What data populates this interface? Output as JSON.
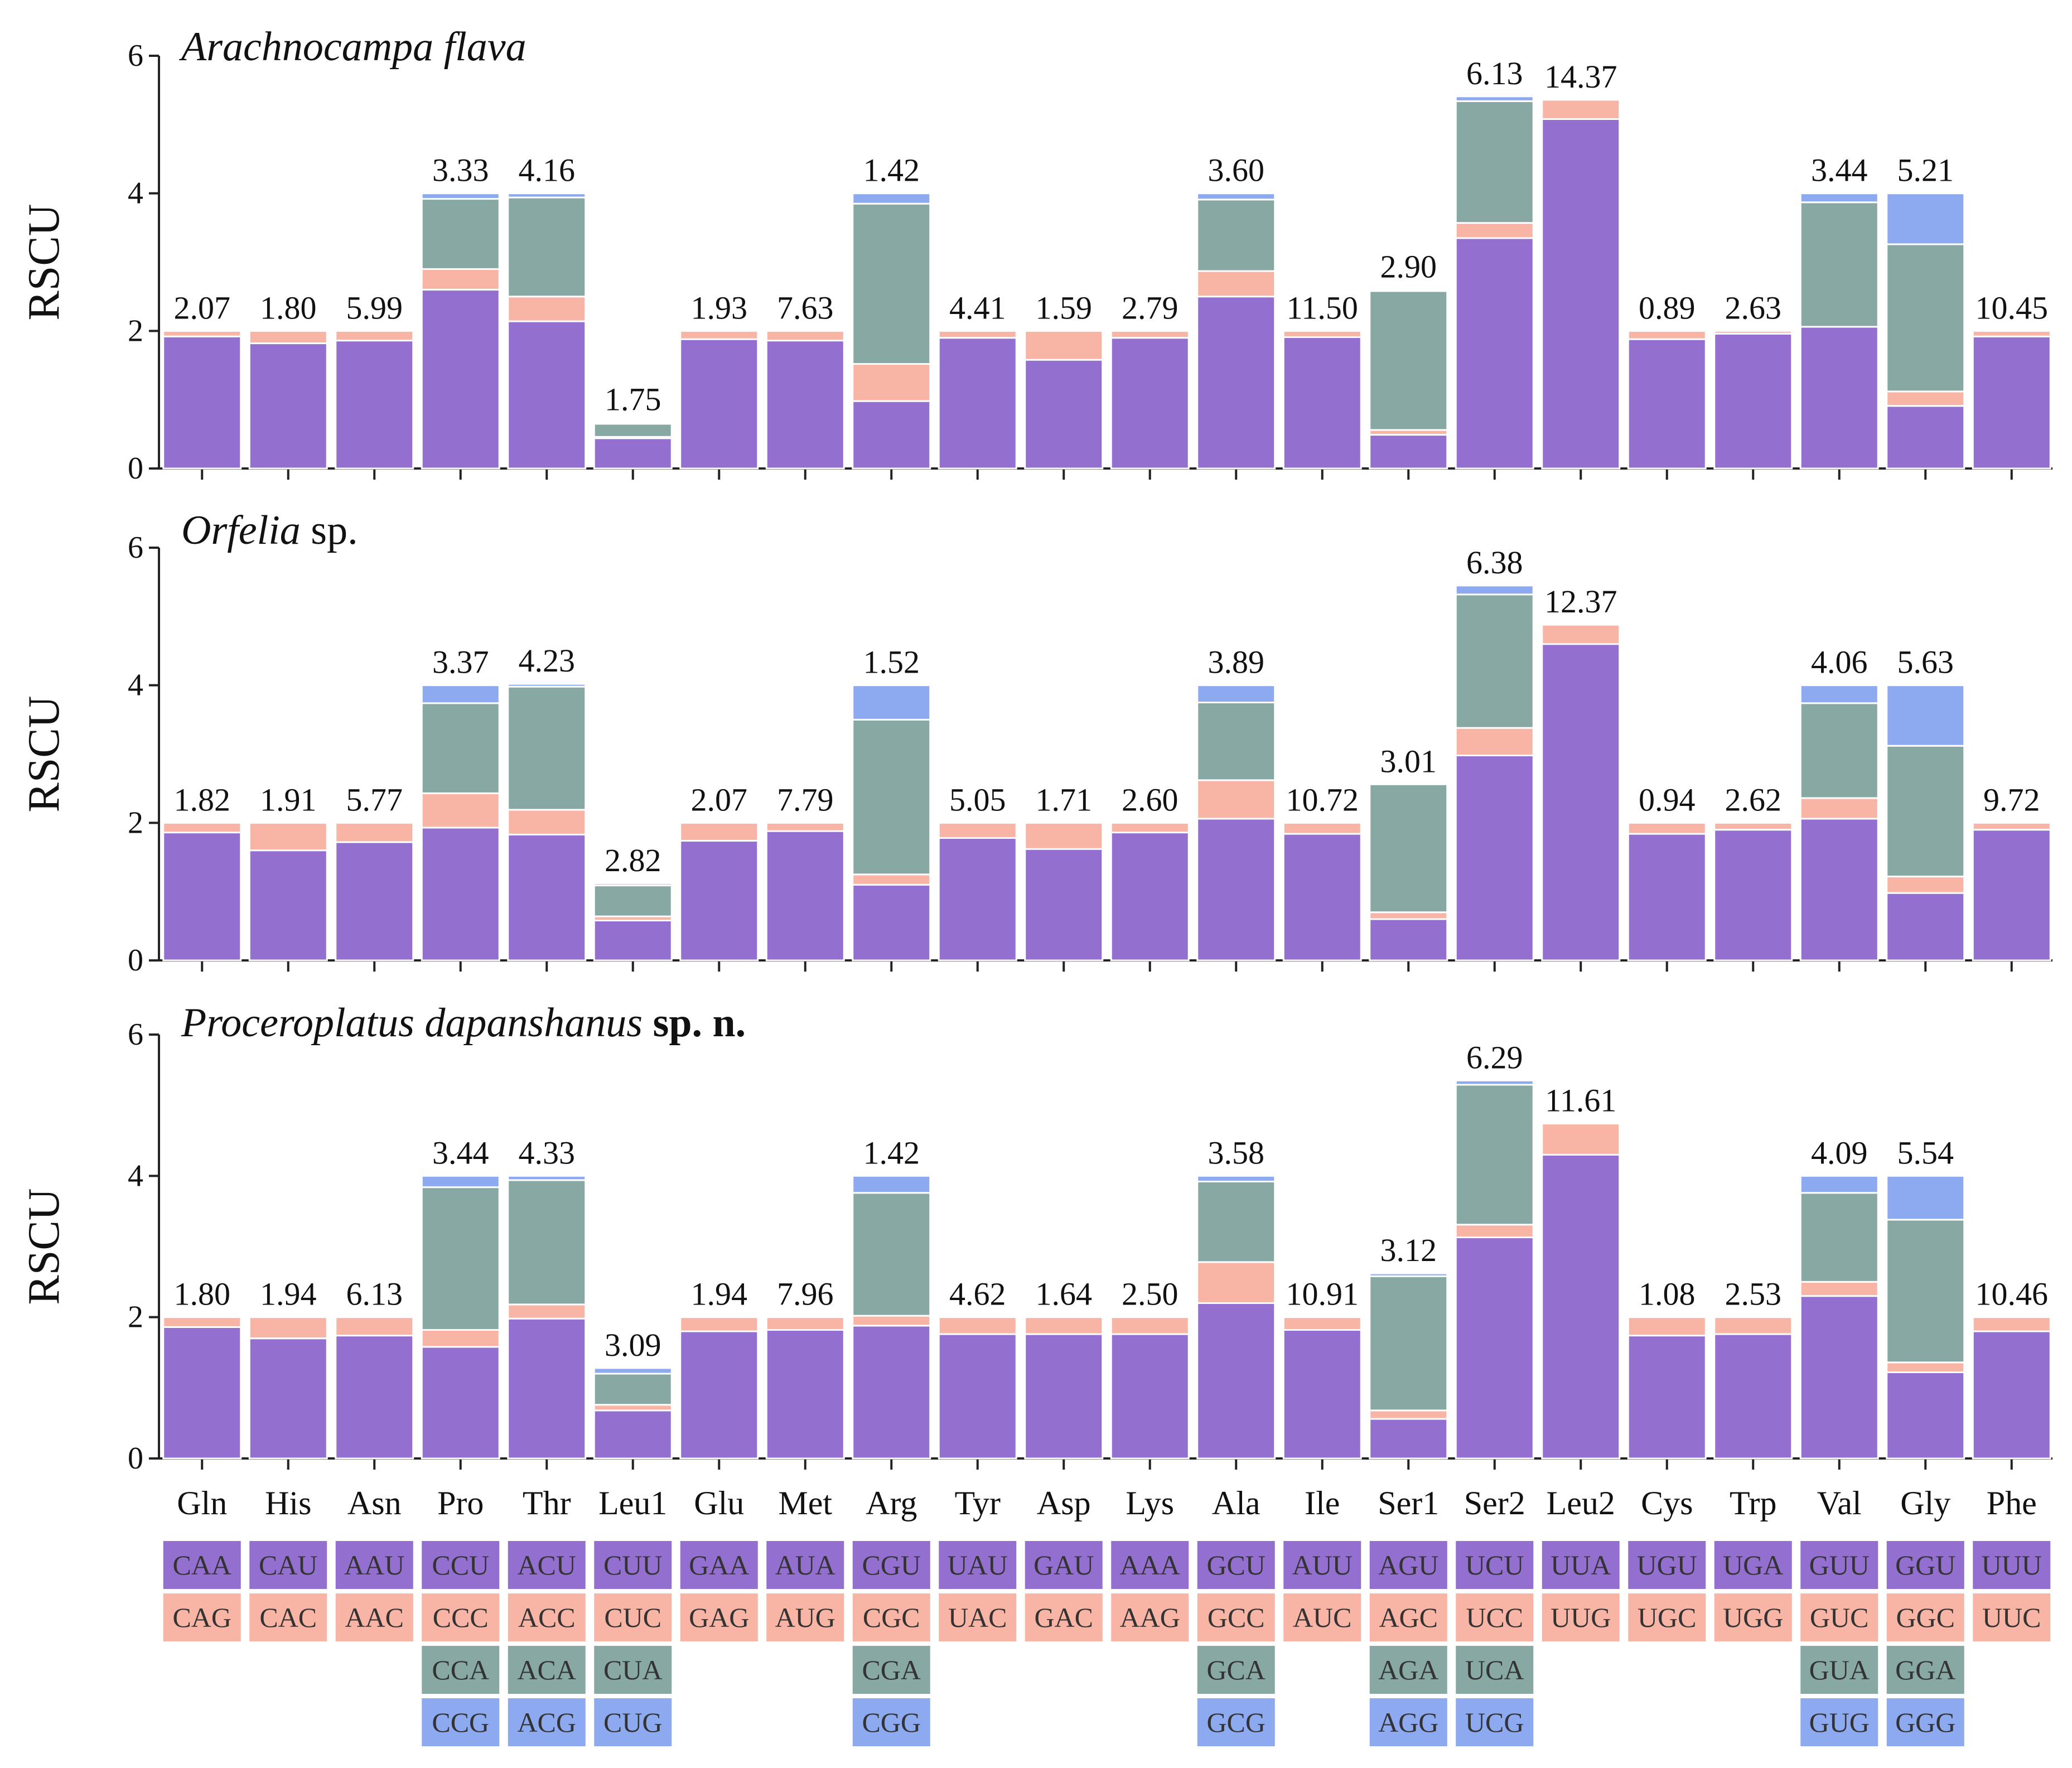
{
  "chart_data": {
    "type": "bar",
    "stacked": true,
    "ylabel": "RSCU",
    "ylim": [
      0,
      6
    ],
    "yticks": [
      0,
      2,
      4,
      6
    ],
    "categories": [
      "Gln",
      "His",
      "Asn",
      "Pro",
      "Thr",
      "Leu1",
      "Glu",
      "Met",
      "Arg",
      "Tyr",
      "Asp",
      "Lys",
      "Ala",
      "Ile",
      "Ser1",
      "Ser2",
      "Leu2",
      "Cys",
      "Trp",
      "Val",
      "Gly",
      "Phe"
    ],
    "colors": [
      "#9370d0",
      "#f8b4a4",
      "#87a8a3",
      "#8da9f0"
    ],
    "codons": [
      [
        "CAA",
        "CAG"
      ],
      [
        "CAU",
        "CAC"
      ],
      [
        "AAU",
        "AAC"
      ],
      [
        "CCU",
        "CCC",
        "CCA",
        "CCG"
      ],
      [
        "ACU",
        "ACC",
        "ACA",
        "ACG"
      ],
      [
        "CUU",
        "CUC",
        "CUA",
        "CUG"
      ],
      [
        "GAA",
        "GAG"
      ],
      [
        "AUA",
        "AUG"
      ],
      [
        "CGU",
        "CGC",
        "CGA",
        "CGG"
      ],
      [
        "UAU",
        "UAC"
      ],
      [
        "GAU",
        "GAC"
      ],
      [
        "AAA",
        "AAG"
      ],
      [
        "GCU",
        "GCC",
        "GCA",
        "GCG"
      ],
      [
        "AUU",
        "AUC"
      ],
      [
        "AGU",
        "AGC",
        "AGA",
        "AGG"
      ],
      [
        "UCU",
        "UCC",
        "UCA",
        "UCG"
      ],
      [
        "UUA",
        "UUG"
      ],
      [
        "UGU",
        "UGC"
      ],
      [
        "UGA",
        "UGG"
      ],
      [
        "GUU",
        "GUC",
        "GUA",
        "GUG"
      ],
      [
        "GGU",
        "GGC",
        "GGA",
        "GGG"
      ],
      [
        "UUU",
        "UUC"
      ]
    ],
    "panels": [
      {
        "title": {
          "name": "Arachnocampa flava",
          "suffix": ""
        },
        "labels": [
          "2.07",
          "1.80",
          "5.99",
          "3.33",
          "4.16",
          "1.75",
          "1.93",
          "7.63",
          "1.42",
          "4.41",
          "1.59",
          "2.79",
          "3.60",
          "11.50",
          "2.90",
          "6.13",
          "14.37",
          "0.89",
          "2.63",
          "3.44",
          "5.21",
          "10.45"
        ],
        "stacks": [
          [
            1.92,
            0.08
          ],
          [
            1.82,
            0.18
          ],
          [
            1.86,
            0.14
          ],
          [
            2.6,
            0.3,
            1.02,
            0.08
          ],
          [
            2.14,
            0.36,
            1.44,
            0.06
          ],
          [
            0.44,
            0.02,
            0.19,
            0.02
          ],
          [
            1.88,
            0.12
          ],
          [
            1.86,
            0.14
          ],
          [
            0.98,
            0.54,
            2.33,
            0.15
          ],
          [
            1.9,
            0.1
          ],
          [
            1.58,
            0.42
          ],
          [
            1.9,
            0.1
          ],
          [
            2.5,
            0.37,
            1.04,
            0.09
          ],
          [
            1.91,
            0.09
          ],
          [
            0.49,
            0.07,
            2.02,
            0.02
          ],
          [
            3.35,
            0.22,
            1.77,
            0.07
          ],
          [
            5.08,
            0.28
          ],
          [
            1.88,
            0.12
          ],
          [
            1.96,
            0.04
          ],
          [
            2.06,
            0.0,
            1.81,
            0.13
          ],
          [
            0.91,
            0.21,
            2.14,
            0.74
          ],
          [
            1.92,
            0.08
          ]
        ]
      },
      {
        "title": {
          "name": "Orfelia",
          "suffix": " sp."
        },
        "labels": [
          "1.82",
          "1.91",
          "5.77",
          "3.37",
          "4.23",
          "2.82",
          "2.07",
          "7.79",
          "1.52",
          "5.05",
          "1.71",
          "2.60",
          "3.89",
          "10.72",
          "3.01",
          "6.38",
          "12.37",
          "0.94",
          "2.62",
          "4.06",
          "5.63",
          "9.72"
        ],
        "stacks": [
          [
            1.86,
            0.14
          ],
          [
            1.6,
            0.4
          ],
          [
            1.72,
            0.28
          ],
          [
            1.93,
            0.5,
            1.31,
            0.26
          ],
          [
            1.83,
            0.36,
            1.79,
            0.04
          ],
          [
            0.58,
            0.06,
            0.45,
            0.03
          ],
          [
            1.74,
            0.26
          ],
          [
            1.88,
            0.12
          ],
          [
            1.1,
            0.15,
            2.25,
            0.5
          ],
          [
            1.78,
            0.22
          ],
          [
            1.62,
            0.38
          ],
          [
            1.86,
            0.14
          ],
          [
            2.06,
            0.56,
            1.13,
            0.25
          ],
          [
            1.84,
            0.16
          ],
          [
            0.6,
            0.1,
            1.86,
            0.0
          ],
          [
            2.98,
            0.4,
            1.94,
            0.13
          ],
          [
            4.6,
            0.28
          ],
          [
            1.84,
            0.16
          ],
          [
            1.9,
            0.1
          ],
          [
            2.06,
            0.3,
            1.38,
            0.26
          ],
          [
            0.98,
            0.24,
            1.9,
            0.88
          ],
          [
            1.9,
            0.1
          ]
        ]
      },
      {
        "title": {
          "name": "Proceroplatus dapanshanus",
          "suffix": " sp. n."
        },
        "labels": [
          "1.80",
          "1.94",
          "6.13",
          "3.44",
          "4.33",
          "3.09",
          "1.94",
          "7.96",
          "1.42",
          "4.62",
          "1.64",
          "2.50",
          "3.58",
          "10.91",
          "3.12",
          "6.29",
          "11.61",
          "1.08",
          "2.53",
          "4.09",
          "5.54",
          "10.46"
        ],
        "stacks": [
          [
            1.86,
            0.14
          ],
          [
            1.7,
            0.3
          ],
          [
            1.74,
            0.26
          ],
          [
            1.58,
            0.24,
            2.02,
            0.16
          ],
          [
            1.98,
            0.2,
            1.76,
            0.06
          ],
          [
            0.68,
            0.08,
            0.44,
            0.08
          ],
          [
            1.8,
            0.2
          ],
          [
            1.82,
            0.18
          ],
          [
            1.88,
            0.14,
            1.74,
            0.24
          ],
          [
            1.76,
            0.24
          ],
          [
            1.76,
            0.24
          ],
          [
            1.76,
            0.24
          ],
          [
            2.2,
            0.58,
            1.14,
            0.08
          ],
          [
            1.82,
            0.18
          ],
          [
            0.56,
            0.12,
            1.9,
            0.04
          ],
          [
            3.13,
            0.18,
            1.98,
            0.06
          ],
          [
            4.3,
            0.44
          ],
          [
            1.74,
            0.26
          ],
          [
            1.76,
            0.24
          ],
          [
            2.3,
            0.2,
            1.26,
            0.24
          ],
          [
            1.22,
            0.14,
            2.02,
            0.62
          ],
          [
            1.8,
            0.2
          ]
        ]
      }
    ]
  }
}
